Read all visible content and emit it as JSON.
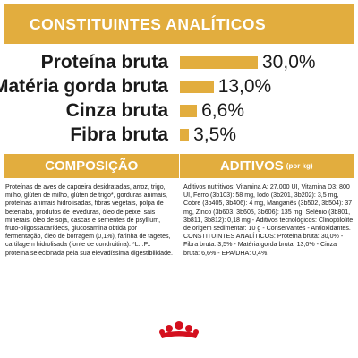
{
  "header": {
    "title": "CONSTITUINTES ANALÍTICOS"
  },
  "nutrients": [
    {
      "label": "Proteína bruta",
      "value": "30,0%",
      "fraction": 0.3
    },
    {
      "label": "Matéria gorda bruta",
      "value": "13,0%",
      "fraction": 0.13
    },
    {
      "label": "Cinza bruta",
      "value": "6,6%",
      "fraction": 0.066
    },
    {
      "label": "Fibra bruta",
      "value": "3,5%",
      "fraction": 0.035
    }
  ],
  "composition": {
    "title": "COMPOSIÇÃO",
    "text": "Proteínas de aves de capoeira desidratadas, arroz, trigo, milho, glúten de milho, glúten de trigo*, gorduras animais, proteínas animais hidrolisadas, fibras vegetais, polpa de beterraba, produtos de leveduras, óleo de peixe, sais minerais, óleo de soja, cascas e sementes de psyllium, fruto-oligossacarídeos, glucosamina obtida por fermentação, óleo de borragem (0,1%), farinha de tagetes, cartilagem hidrolisada (fonte de condroitina). *L.I.P.: proteína selecionada pela sua elevadíssima digestibilidade."
  },
  "additives": {
    "title": "ADITIVOS",
    "unit": "(por kg)",
    "text": "Aditivos nutritivos: Vitamina A: 27.000 UI, Vitamina D3: 800 UI, Ferro (3b103): 58 mg, Iodo (3b201, 3b202): 3,5 mg, Cobre (3b405, 3b406): 4 mg, Manganês (3b502, 3b504): 37 mg, Zinco (3b603, 3b605, 3b606): 135 mg, Selénio (3b801, 3b811, 3b812): 0,18 mg - Aditivos tecnológicos: Clinoptilolite de origem sedimentar: 10 g - Conservantes - Antioxidantes. CONSTITUINTES ANALÍTICOS: Proteína bruta: 30,0% - Fibra bruta: 3,5% - Matéria gorda bruta: 13,0% - Cinza bruta: 6,6% - EPA/DHA: 0,4%."
  },
  "logo": {
    "icon": "royal-canin-crown-icon"
  },
  "colors": {
    "accent": "#e2ad3e",
    "logo_red": "#d4101e",
    "text": "#1a1a1a"
  }
}
